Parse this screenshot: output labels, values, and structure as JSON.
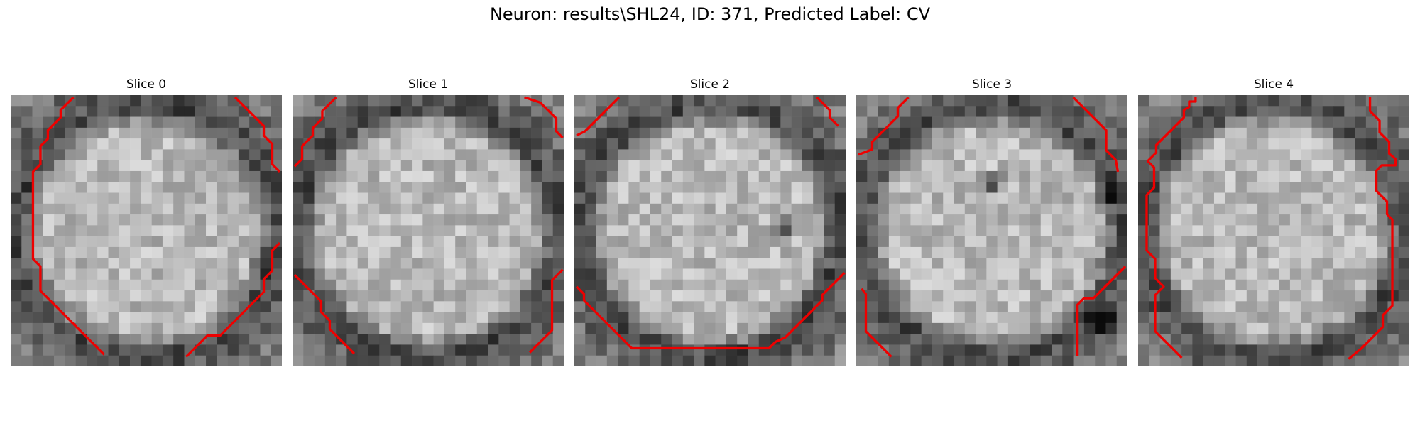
{
  "figure": {
    "title": "Neuron: results\\SHL24, ID: 371, Predicted Label: CV",
    "contour_color": "#ee0000",
    "panels": [
      {
        "label": "Slice 0",
        "dark_spots": [],
        "contours": [
          [
            [
              5.9,
              0.2
            ],
            [
              4.7,
              1.4
            ],
            [
              4.7,
              2.1
            ],
            [
              3.5,
              3.3
            ],
            [
              3.5,
              4.1
            ],
            [
              2.8,
              4.8
            ],
            [
              2.8,
              6.5
            ],
            [
              2.1,
              7.2
            ],
            [
              2.1,
              15.4
            ],
            [
              2.8,
              16.1
            ],
            [
              2.8,
              18.4
            ],
            [
              4.7,
              20.3
            ],
            [
              8.8,
              24.4
            ]
          ],
          [
            [
              21.1,
              0.2
            ],
            [
              23.8,
              2.9
            ],
            [
              23.8,
              3.8
            ],
            [
              24.6,
              4.6
            ],
            [
              24.6,
              6.5
            ],
            [
              25.3,
              7.2
            ]
          ],
          [
            [
              25.3,
              13.9
            ],
            [
              24.6,
              14.6
            ],
            [
              24.6,
              16.5
            ],
            [
              23.8,
              17.3
            ],
            [
              23.8,
              18.5
            ],
            [
              19.7,
              22.6
            ],
            [
              18.5,
              22.6
            ],
            [
              16.5,
              24.6
            ]
          ]
        ]
      },
      {
        "label": "Slice 1",
        "dark_spots": [],
        "contours": [
          [
            [
              4.1,
              0.2
            ],
            [
              2.8,
              1.5
            ],
            [
              2.8,
              2.2
            ],
            [
              1.9,
              3.1
            ],
            [
              1.9,
              3.8
            ],
            [
              0.9,
              4.8
            ],
            [
              0.9,
              6.0
            ],
            [
              0.2,
              6.7
            ]
          ],
          [
            [
              21.8,
              0.2
            ],
            [
              23.3,
              0.7
            ],
            [
              24.8,
              2.2
            ],
            [
              24.8,
              3.4
            ],
            [
              25.4,
              4.0
            ]
          ],
          [
            [
              0.2,
              16.9
            ],
            [
              2.7,
              19.4
            ],
            [
              2.7,
              20.4
            ],
            [
              3.5,
              21.2
            ],
            [
              3.5,
              22.0
            ],
            [
              5.8,
              24.3
            ]
          ],
          [
            [
              25.4,
              16.4
            ],
            [
              24.4,
              17.4
            ],
            [
              24.4,
              22.1
            ],
            [
              22.3,
              24.2
            ]
          ]
        ]
      },
      {
        "label": "Slice 2",
        "dark_spots": [
          [
            19.2,
            12.2,
            1.5,
            1.3
          ]
        ],
        "contours": [
          [
            [
              4.2,
              0.2
            ],
            [
              1.9,
              2.5
            ],
            [
              1.0,
              3.4
            ],
            [
              0.2,
              3.8
            ]
          ],
          [
            [
              22.8,
              0.2
            ],
            [
              24.0,
              1.4
            ],
            [
              24.0,
              2.1
            ],
            [
              24.8,
              2.9
            ]
          ],
          [
            [
              0.2,
              18.0
            ],
            [
              0.9,
              18.7
            ],
            [
              0.9,
              19.3
            ],
            [
              5.2,
              23.6
            ],
            [
              5.4,
              23.8
            ],
            [
              18.3,
              23.8
            ],
            [
              18.9,
              23.2
            ],
            [
              19.8,
              22.8
            ],
            [
              23.3,
              19.3
            ],
            [
              23.3,
              18.8
            ],
            [
              25.4,
              16.7
            ]
          ]
        ]
      },
      {
        "label": "Slice 3",
        "dark_spots": [
          [
            12.5,
            8.1,
            1.5,
            1.5
          ],
          [
            23.0,
            9.2,
            1.1,
            1.3
          ],
          [
            22.7,
            21.0,
            1.6,
            1.8
          ]
        ],
        "contours": [
          [
            [
              4.9,
              0.2
            ],
            [
              3.9,
              1.2
            ],
            [
              3.9,
              2.0
            ],
            [
              1.5,
              4.4
            ],
            [
              1.5,
              5.1
            ],
            [
              0.2,
              5.6
            ]
          ],
          [
            [
              20.4,
              0.2
            ],
            [
              23.5,
              3.3
            ],
            [
              23.5,
              5.2
            ],
            [
              24.4,
              6.1
            ],
            [
              24.6,
              7.2
            ]
          ],
          [
            [
              0.5,
              18.2
            ],
            [
              0.9,
              18.7
            ],
            [
              0.9,
              22.2
            ],
            [
              3.3,
              24.6
            ]
          ],
          [
            [
              25.3,
              16.1
            ],
            [
              22.3,
              19.1
            ],
            [
              21.4,
              19.1
            ],
            [
              20.8,
              19.7
            ],
            [
              20.8,
              24.5
            ]
          ]
        ]
      },
      {
        "label": "Slice 4",
        "dark_spots": [],
        "contours": [
          [
            [
              5.4,
              0.2
            ],
            [
              5.4,
              0.6
            ],
            [
              4.8,
              0.6
            ],
            [
              4.8,
              1.1
            ],
            [
              4.3,
              1.4
            ],
            [
              4.3,
              2.1
            ],
            [
              1.7,
              4.7
            ],
            [
              1.7,
              5.4
            ],
            [
              0.9,
              6.2
            ],
            [
              1.5,
              6.8
            ],
            [
              1.5,
              8.7
            ],
            [
              0.8,
              9.4
            ],
            [
              0.8,
              14.6
            ],
            [
              1.6,
              15.4
            ],
            [
              1.6,
              17.2
            ],
            [
              2.4,
              18.0
            ],
            [
              1.6,
              18.8
            ],
            [
              1.6,
              22.2
            ],
            [
              4.1,
              24.7
            ]
          ],
          [
            [
              21.8,
              0.2
            ],
            [
              21.8,
              1.5
            ],
            [
              22.7,
              2.4
            ],
            [
              22.7,
              3.5
            ],
            [
              23.6,
              4.4
            ],
            [
              23.6,
              5.5
            ],
            [
              24.2,
              6.0
            ],
            [
              24.2,
              6.6
            ],
            [
              22.9,
              6.6
            ],
            [
              22.4,
              7.1
            ],
            [
              22.4,
              9.0
            ],
            [
              23.4,
              10.0
            ],
            [
              23.4,
              11.2
            ],
            [
              23.9,
              11.7
            ],
            [
              23.9,
              19.8
            ],
            [
              23.0,
              20.7
            ],
            [
              23.0,
              21.8
            ],
            [
              21.0,
              23.8
            ],
            [
              19.8,
              24.8
            ]
          ]
        ]
      }
    ]
  }
}
